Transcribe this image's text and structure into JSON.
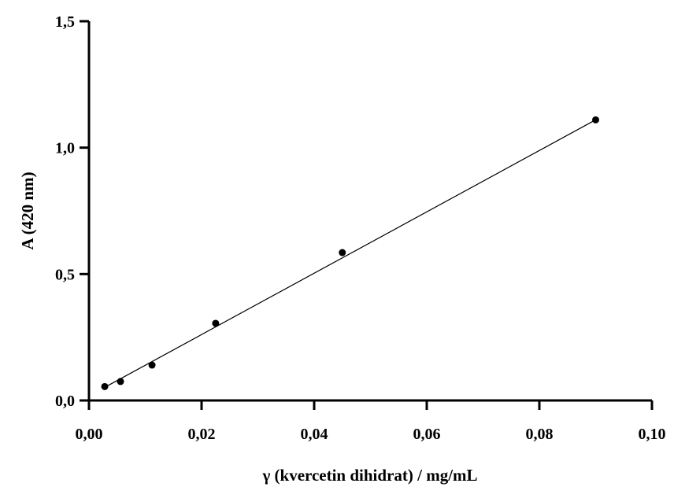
{
  "chart_data": {
    "type": "scatter",
    "title": "",
    "xlabel": "γ (kvercetin dihidrat) / mg/mL",
    "ylabel": "A (420 nm)",
    "xlim": [
      0,
      0.1
    ],
    "ylim": [
      0,
      1.5
    ],
    "xticks": [
      0,
      0.02,
      0.04,
      0.06,
      0.08,
      0.1
    ],
    "xtick_labels": [
      "0,00",
      "0,02",
      "0,04",
      "0,06",
      "0,08",
      "0,10"
    ],
    "yticks": [
      0,
      0.5,
      1.0,
      1.5
    ],
    "ytick_labels": [
      "0,0",
      "0,5",
      "1,0",
      "1,5"
    ],
    "grid": false,
    "series": [
      {
        "x": [
          0.0028,
          0.0056,
          0.0112,
          0.0225,
          0.045,
          0.09
        ],
        "y": [
          0.055,
          0.075,
          0.14,
          0.305,
          0.585,
          1.11
        ],
        "color": "#000000"
      }
    ],
    "fit_line": {
      "x": [
        0.0028,
        0.09
      ],
      "y": [
        0.052,
        1.11
      ],
      "color": "#000000"
    }
  }
}
